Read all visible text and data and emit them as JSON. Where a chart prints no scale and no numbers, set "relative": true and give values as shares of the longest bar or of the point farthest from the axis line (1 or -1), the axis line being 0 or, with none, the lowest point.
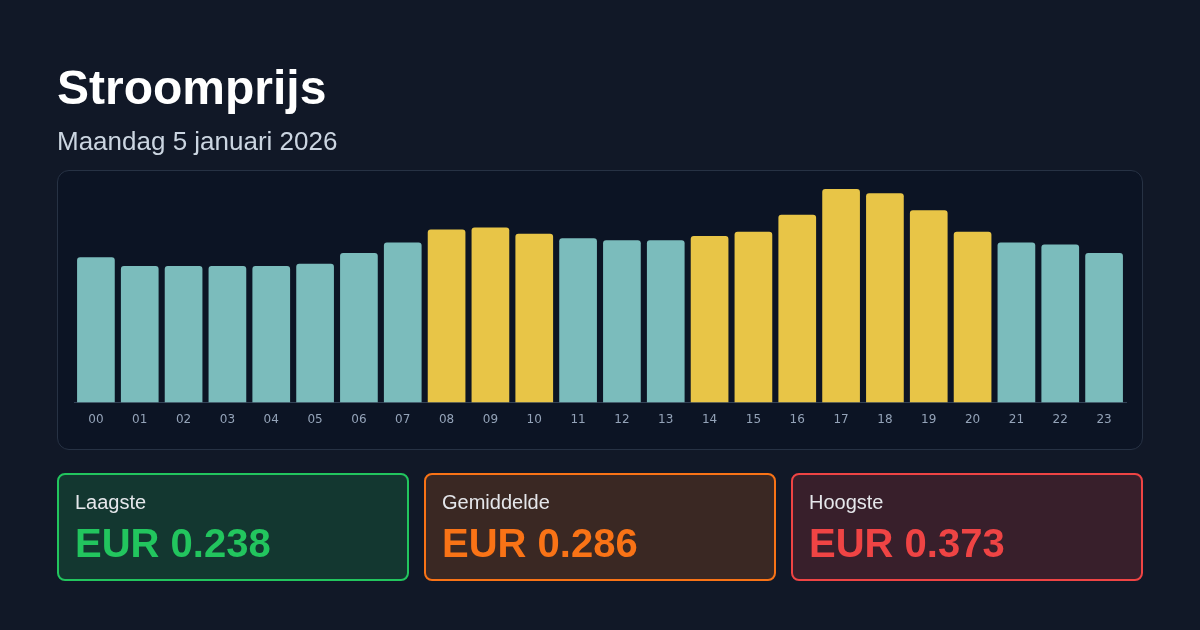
{
  "chart_data": [
    {
      "type": "bar",
      "title": "Stroomprijs",
      "subtitle": "Maandag 5 januari 2026",
      "relative": true,
      "legend": false,
      "categories": [
        "00",
        "01",
        "02",
        "03",
        "04",
        "05",
        "06",
        "07",
        "08",
        "09",
        "10",
        "11",
        "12",
        "13",
        "14",
        "15",
        "16",
        "17",
        "18",
        "19",
        "20",
        "21",
        "22",
        "23"
      ],
      "values": [
        0.68,
        0.64,
        0.64,
        0.64,
        0.64,
        0.65,
        0.7,
        0.75,
        0.81,
        0.82,
        0.79,
        0.77,
        0.76,
        0.76,
        0.78,
        0.8,
        0.88,
        1,
        0.98,
        0.9,
        0.8,
        0.75,
        0.74,
        0.7
      ],
      "colors": [
        "#7bbcbc",
        "#7bbcbc",
        "#7bbcbc",
        "#7bbcbc",
        "#7bbcbc",
        "#7bbcbc",
        "#7bbcbc",
        "#7bbcbc",
        "#e8c547",
        "#e8c547",
        "#e8c547",
        "#7bbcbc",
        "#7bbcbc",
        "#7bbcbc",
        "#e8c547",
        "#e8c547",
        "#e8c547",
        "#e8c547",
        "#e8c547",
        "#e8c547",
        "#e8c547",
        "#7bbcbc",
        "#7bbcbc",
        "#7bbcbc"
      ]
    },
    {
      "type": "other",
      "categories": [
        "Laagste",
        "Gemiddelde",
        "Hoogste"
      ],
      "value_labels": [
        "EUR 0.238",
        "EUR 0.286",
        "EUR 0.373"
      ],
      "colors": [
        "#22c55e",
        "#f97316",
        "#ef4444"
      ]
    }
  ]
}
